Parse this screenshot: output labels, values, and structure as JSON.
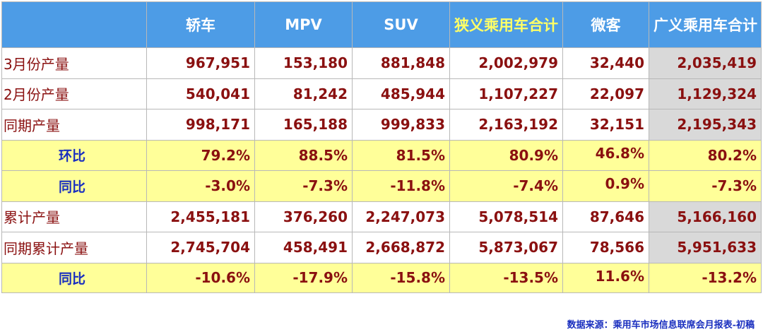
{
  "columns": [
    "轿车",
    "MPV",
    "SUV",
    "狭义乘用车合计",
    "微客",
    "广义乘用车合计"
  ],
  "rows": [
    {
      "label": "3月份产量",
      "kind": "data",
      "values": [
        "967,951",
        "153,180",
        "881,848",
        "2,002,979",
        "32,440",
        "2,035,419"
      ]
    },
    {
      "label": "2月份产量",
      "kind": "data",
      "values": [
        "540,041",
        "81,242",
        "485,944",
        "1,107,227",
        "22,097",
        "1,129,324"
      ]
    },
    {
      "label": "同期产量",
      "kind": "data",
      "values": [
        "998,171",
        "165,188",
        "999,833",
        "2,163,192",
        "32,151",
        "2,195,343"
      ]
    },
    {
      "label": "环比",
      "kind": "ratio",
      "values": [
        "79.2%",
        "88.5%",
        "81.5%",
        "80.9%",
        "46.8%",
        "80.2%"
      ]
    },
    {
      "label": "同比",
      "kind": "ratio",
      "values": [
        "-3.0%",
        "-7.3%",
        "-11.8%",
        "-7.4%",
        "0.9%",
        "-7.3%"
      ]
    },
    {
      "label": "累计产量",
      "kind": "data",
      "values": [
        "2,455,181",
        "376,260",
        "2,247,073",
        "5,078,514",
        "87,646",
        "5,166,160"
      ]
    },
    {
      "label": "同期累计产量",
      "kind": "data",
      "values": [
        "2,745,704",
        "458,491",
        "2,668,872",
        "5,873,067",
        "78,566",
        "5,951,633"
      ]
    },
    {
      "label": "同比",
      "kind": "ratio",
      "values": [
        "-10.6%",
        "-17.9%",
        "-15.8%",
        "-13.5%",
        "11.6%",
        "-13.2%"
      ]
    }
  ],
  "source": "数据来源：乘用车市场信息联席会月报表-初稿",
  "colors": {
    "header_bg": "#4d9ce6",
    "header_text": "#ffffff",
    "header_highlight": "#ffff66",
    "value_text": "#8a1010",
    "ratio_bg": "#ffff99",
    "ratio_label": "#1a2fbf",
    "total_col_bg": "#d9d9d9"
  }
}
